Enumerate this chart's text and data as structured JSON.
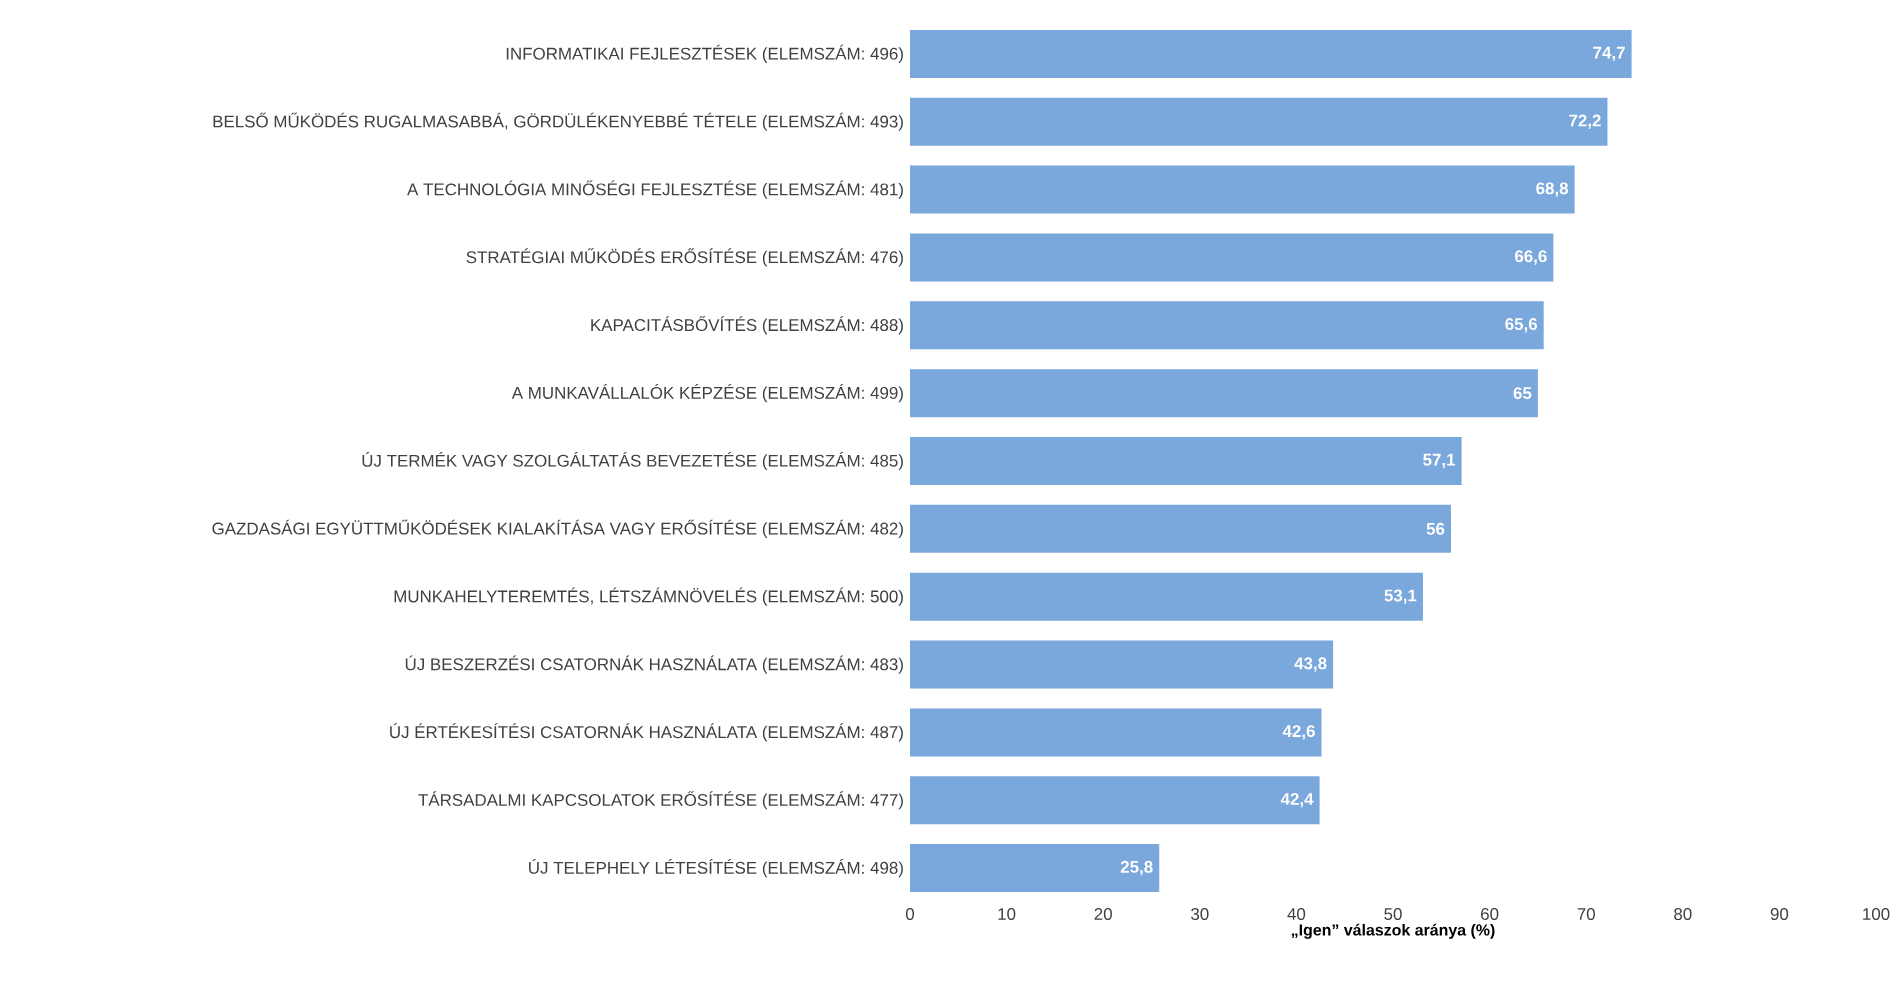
{
  "chart_data": {
    "type": "bar",
    "orientation": "horizontal",
    "xlabel": "**„Igen” válaszok aránya (%)**",
    "categories": [
      "INFORMATIKAI FEJLESZTÉSEK (ELEMSZÁM: 496)",
      "BELSŐ MŰKÖDÉS RUGALMASABBÁ, GÖRDÜLÉKENYEBBÉ TÉTELE (ELEMSZÁM: 493)",
      "A TECHNOLÓGIA MINŐSÉGI FEJLESZTÉSE (ELEMSZÁM: 481)",
      "STRATÉGIAI MŰKÖDÉS ERŐSÍTÉSE (ELEMSZÁM: 476)",
      "KAPACITÁSBŐVÍTÉS (ELEMSZÁM: 488)",
      "A MUNKAVÁLLALÓK KÉPZÉSE (ELEMSZÁM: 499)",
      "ÚJ TERMÉK VAGY SZOLGÁLTATÁS BEVEZETÉSE (ELEMSZÁM: 485)",
      "GAZDASÁGI EGYÜTTMŰKÖDÉSEK KIALAKÍTÁSA VAGY ERŐSÍTÉSE (ELEMSZÁM: 482)",
      "MUNKAHELYTEREMTÉS, LÉTSZÁMNÖVELÉS (ELEMSZÁM: 500)",
      "ÚJ BESZERZÉSI CSATORNÁK HASZNÁLATA (ELEMSZÁM: 483)",
      "ÚJ ÉRTÉKESÍTÉSI CSATORNÁK HASZNÁLATA (ELEMSZÁM: 487)",
      "TÁRSADALMI KAPCSOLATOK ERŐSÍTÉSE (ELEMSZÁM: 477)",
      "ÚJ TELEPHELY LÉTESÍTÉSE (ELEMSZÁM: 498)"
    ],
    "values": [
      74.7,
      72.2,
      68.8,
      66.6,
      65.6,
      65,
      57.1,
      56,
      53.1,
      43.8,
      42.6,
      42.4,
      25.8
    ],
    "value_labels": [
      "74,7",
      "72,2",
      "68,8",
      "66,6",
      "65,6",
      "65",
      "57,1",
      "56",
      "53,1",
      "43,8",
      "42,6",
      "42,4",
      "25,8"
    ],
    "color": "#7aa7dc",
    "xlim": [
      0,
      100
    ],
    "xticks": [
      0,
      10,
      20,
      30,
      40,
      50,
      60,
      70,
      80,
      90,
      100
    ]
  }
}
